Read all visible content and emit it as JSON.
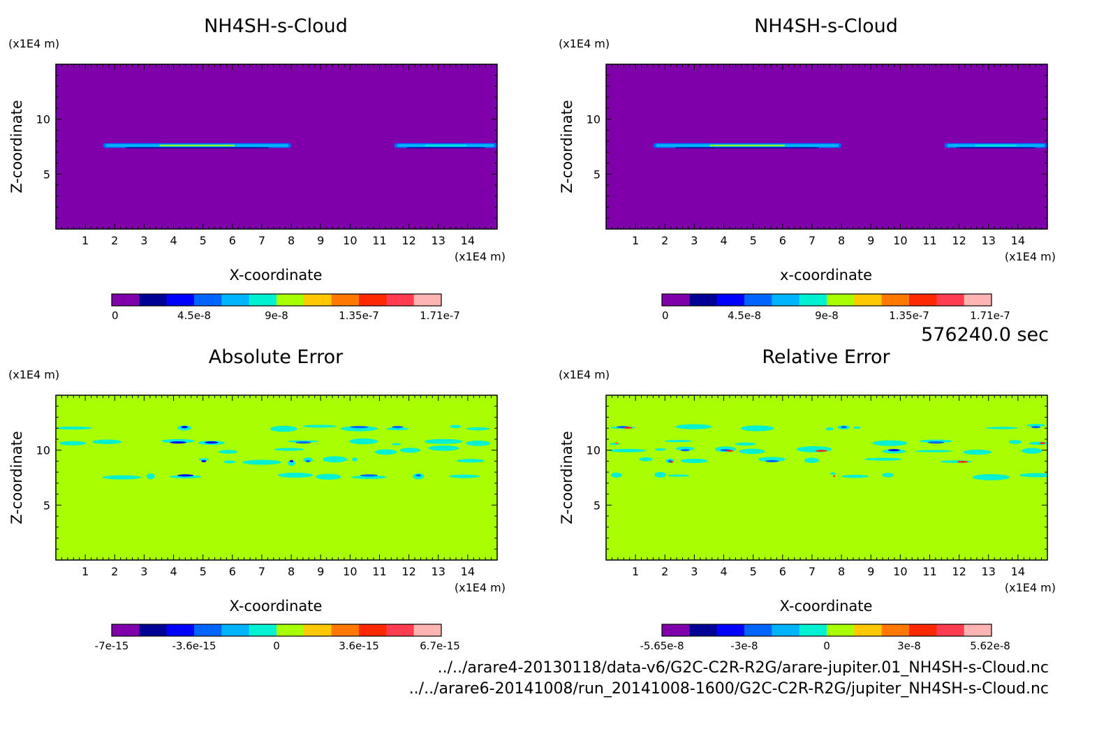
{
  "time_label": "576240.0 sec",
  "files": [
    "../../arare4-20130118/data-v6/G2C-C2R-R2G/arare-jupiter.01_NH4SH-s-Cloud.nc",
    "../../arare6-20141008/run_20141008-1600/G2C-C2R-R2G/jupiter_NH4SH-s-Cloud.nc"
  ],
  "colors": {
    "background_low": "#7f00aa",
    "background_zero": "#a8ff00",
    "palette": [
      "#7f00aa",
      "#000096",
      "#0000ff",
      "#0064ff",
      "#00b4ff",
      "#00f0d2",
      "#a8ff00",
      "#ffc800",
      "#ff7800",
      "#ff2800",
      "#ff3c50",
      "#ffb4b4"
    ]
  },
  "chart_data": [
    {
      "type": "heatmap",
      "title": "NH4SH-s-Cloud",
      "xlabel": "X-coordinate",
      "ylabel": "Z-coordinate",
      "x_unit": "(x1E4 m)",
      "y_unit": "(x1E4 m)",
      "xlim": [
        0,
        15
      ],
      "ylim": [
        0,
        15
      ],
      "x_ticks": [
        1,
        2,
        3,
        4,
        5,
        6,
        7,
        8,
        9,
        10,
        11,
        12,
        13,
        14
      ],
      "y_ticks": [
        5,
        10
      ],
      "colorbar_ticks": [
        "0",
        "4.5e-8",
        "9e-8",
        "1.35e-7",
        "1.71e-7"
      ],
      "background": "#7f00aa",
      "features": [
        {
          "x": [
            1.6,
            8.0
          ],
          "z": 7.6,
          "peak": "#a8ff00"
        },
        {
          "x": [
            11.5,
            15.0
          ],
          "z": 7.6,
          "peak": "#00f0d2"
        }
      ]
    },
    {
      "type": "heatmap",
      "title": "NH4SH-s-Cloud",
      "xlabel": "x-coordinate",
      "ylabel": "Z-coordinate",
      "x_unit": "(x1E4 m)",
      "y_unit": "(x1E4 m)",
      "xlim": [
        0,
        15
      ],
      "ylim": [
        0,
        15
      ],
      "x_ticks": [
        1,
        2,
        3,
        4,
        5,
        6,
        7,
        8,
        9,
        10,
        11,
        12,
        13,
        14
      ],
      "y_ticks": [
        5,
        10
      ],
      "colorbar_ticks": [
        "0",
        "4.5e-8",
        "9e-8",
        "1.35e-7",
        "1.71e-7"
      ],
      "background": "#7f00aa",
      "features": [
        {
          "x": [
            1.6,
            8.0
          ],
          "z": 7.6,
          "peak": "#a8ff00"
        },
        {
          "x": [
            11.5,
            15.0
          ],
          "z": 7.6,
          "peak": "#00f0d2"
        }
      ]
    },
    {
      "type": "heatmap",
      "title": "Absolute Error",
      "xlabel": "X-coordinate",
      "ylabel": "Z-coordinate",
      "x_unit": "(x1E4 m)",
      "y_unit": "(x1E4 m)",
      "xlim": [
        0,
        15
      ],
      "ylim": [
        0,
        15
      ],
      "x_ticks": [
        1,
        2,
        3,
        4,
        5,
        6,
        7,
        8,
        9,
        10,
        11,
        12,
        13,
        14
      ],
      "y_ticks": [
        5,
        10
      ],
      "colorbar_ticks": [
        "-7e-15",
        "-3.6e-15",
        "0",
        "3.6e-15",
        "6.7e-15"
      ],
      "background": "#a8ff00",
      "error_bands": [
        12.1,
        10.7,
        10.0,
        9.0,
        7.7
      ]
    },
    {
      "type": "heatmap",
      "title": "Relative Error",
      "xlabel": "X-coordinate",
      "ylabel": "Z-coordinate",
      "x_unit": "(x1E4 m)",
      "y_unit": "(x1E4 m)",
      "xlim": [
        0,
        15
      ],
      "ylim": [
        0,
        15
      ],
      "x_ticks": [
        1,
        2,
        3,
        4,
        5,
        6,
        7,
        8,
        9,
        10,
        11,
        12,
        13,
        14
      ],
      "y_ticks": [
        5,
        10
      ],
      "colorbar_ticks": [
        "-5.65e-8",
        "-3e-8",
        "0",
        "3e-8",
        "5.62e-8"
      ],
      "background": "#a8ff00",
      "error_bands": [
        12.1,
        10.7,
        10.0,
        9.0,
        7.7
      ]
    }
  ]
}
